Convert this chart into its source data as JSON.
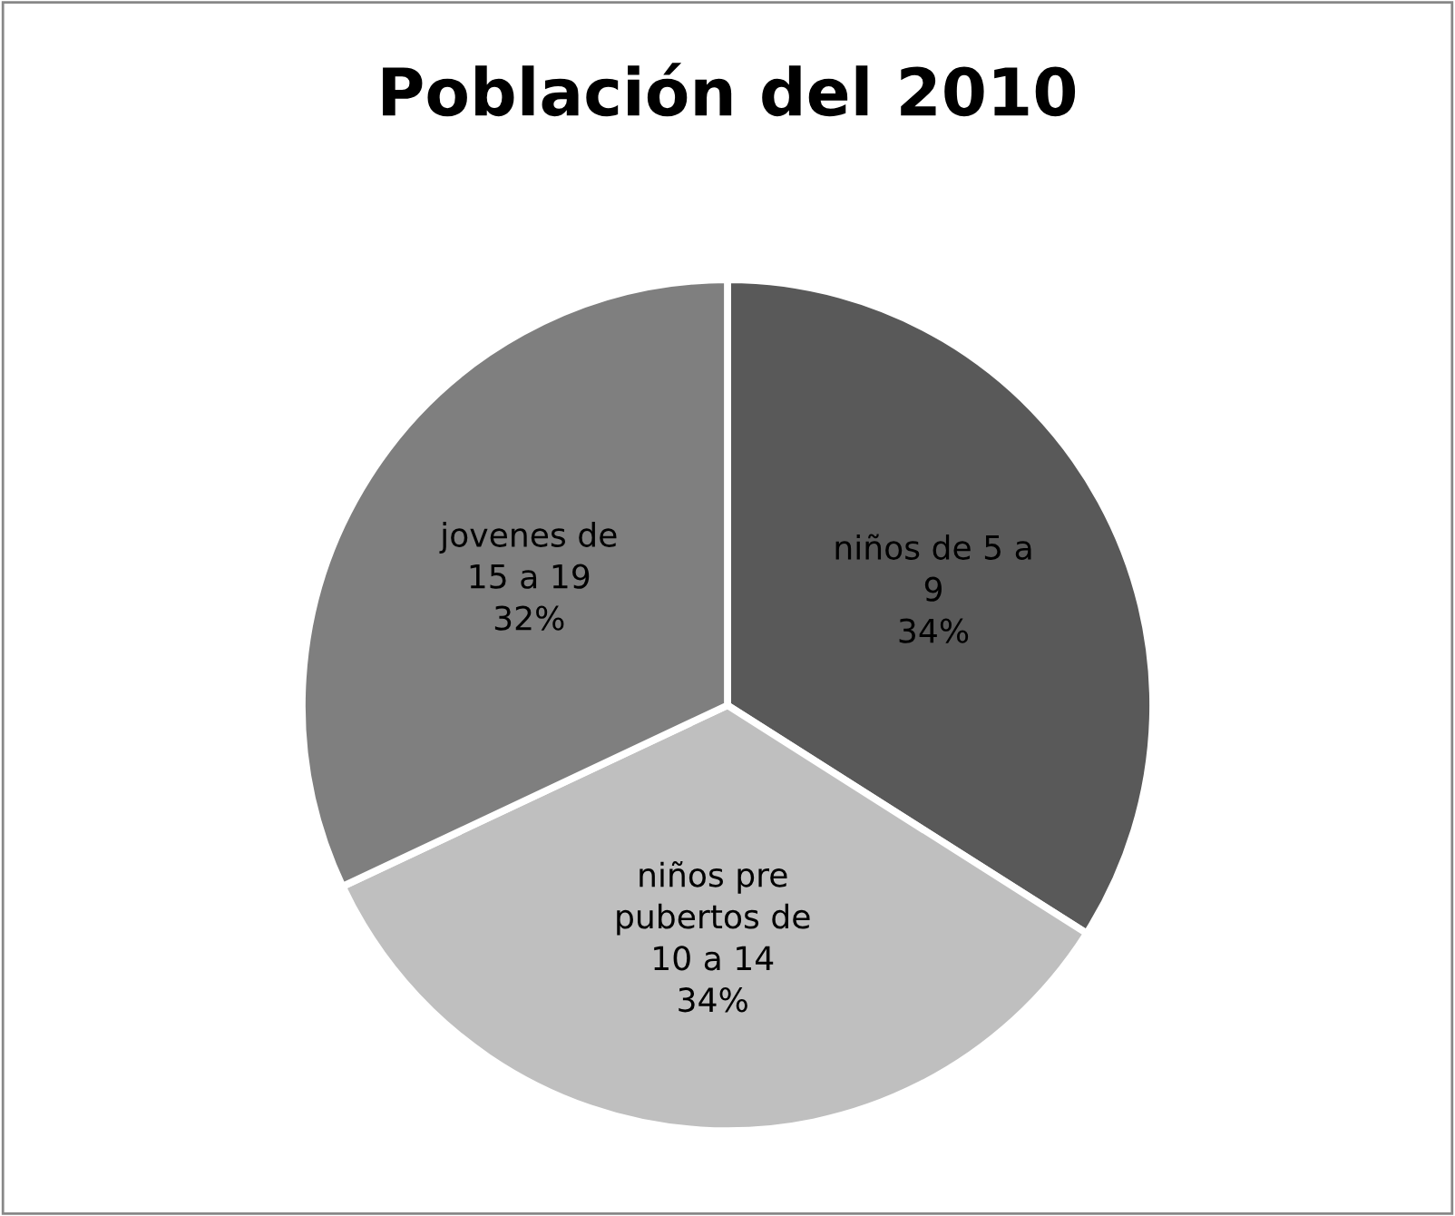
{
  "chart_data": {
    "type": "pie",
    "title": "Población del 2010",
    "categories": [
      "niños de 5 a 9",
      "niños pre pubertos de 10 a 14",
      "jovenes de 15 a 19"
    ],
    "values": [
      34,
      34,
      32
    ],
    "value_labels": [
      "34%",
      "34%",
      "32%"
    ],
    "colors": [
      "#595959",
      "#bfbfbf",
      "#7f7f7f"
    ],
    "legend": false
  }
}
